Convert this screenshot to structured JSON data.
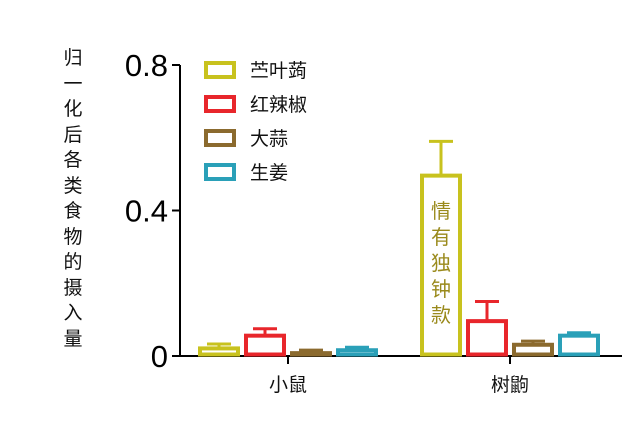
{
  "chart_data": {
    "type": "bar",
    "ylabel": "归一化后各类食物的摄入量",
    "categories": [
      "小鼠",
      "树鼩"
    ],
    "yticks": [
      "0",
      "0.4",
      "0.8"
    ],
    "ylim": [
      0,
      0.8
    ],
    "grid": false,
    "legend_position": "top-left",
    "series": [
      {
        "name": "苎叶蒟",
        "color": "#c8c21e",
        "values": [
          0.025,
          0.5
        ],
        "errors": [
          0.008,
          0.09
        ]
      },
      {
        "name": "红辣椒",
        "color": "#e8262b",
        "values": [
          0.06,
          0.1
        ],
        "errors": [
          0.015,
          0.05
        ]
      },
      {
        "name": "大蒜",
        "color": "#8b6a2e",
        "values": [
          0.012,
          0.035
        ],
        "errors": [
          0.004,
          0.006
        ]
      },
      {
        "name": "生姜",
        "color": "#2aa0b8",
        "values": [
          0.02,
          0.06
        ],
        "errors": [
          0.004,
          0.004
        ]
      }
    ],
    "annotation": {
      "text": "情有独钟款",
      "series": 0,
      "category": 1
    }
  }
}
